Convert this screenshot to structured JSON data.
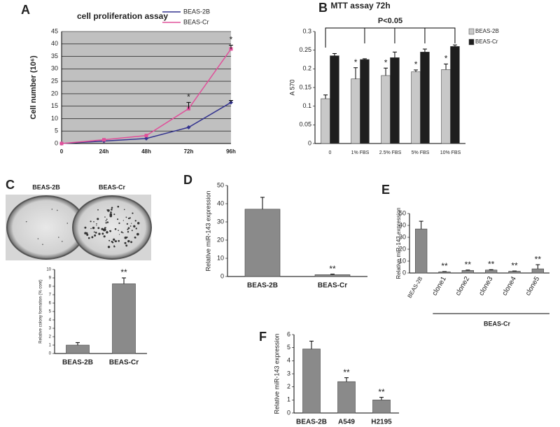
{
  "chart_data": [
    {
      "panel": "A",
      "type": "line",
      "title": "cell proliferation assay",
      "ylabel": "Cell number (10⁶)",
      "categories": [
        "0",
        "24h",
        "48h",
        "72h",
        "96h"
      ],
      "series": [
        {
          "name": "BEAS-2B",
          "color": "#33338f",
          "values": [
            0,
            1,
            2,
            6.5,
            16.5
          ],
          "errors": [
            null,
            null,
            null,
            null,
            0.8
          ],
          "significance": [
            null,
            null,
            null,
            null,
            null
          ]
        },
        {
          "name": "BEAS-Cr",
          "color": "#e0509a",
          "values": [
            0,
            1.5,
            3.2,
            14,
            38
          ],
          "errors": [
            null,
            null,
            null,
            2.5,
            1.5
          ],
          "significance": [
            null,
            null,
            null,
            "*",
            "*"
          ]
        }
      ],
      "ylim": [
        0,
        45
      ],
      "yticks": [
        0,
        5,
        10,
        15,
        20,
        25,
        30,
        35,
        40,
        45
      ],
      "grid": true,
      "background": "#c0c0c0"
    },
    {
      "panel": "B",
      "type": "bar",
      "title": "MTT assay 72h",
      "ylabel": "A 570",
      "annotation": "P<0.05",
      "categories": [
        "0",
        "1% FBS",
        "2.5% FBS",
        "5% FBS",
        "10% FBS"
      ],
      "series": [
        {
          "name": "BEAS-2B",
          "color": "#c8c8c8",
          "values": [
            0.12,
            0.173,
            0.182,
            0.192,
            0.198
          ],
          "errors": [
            0.01,
            0.03,
            0.02,
            0.005,
            0.015
          ],
          "significance": [
            null,
            "*",
            "*",
            "*",
            "*"
          ]
        },
        {
          "name": "BEAS-Cr",
          "color": "#1e1e1e",
          "values": [
            0.235,
            0.225,
            0.23,
            0.245,
            0.26
          ],
          "errors": [
            0.006,
            0.002,
            0.015,
            0.008,
            0.004
          ],
          "significance": [
            null,
            null,
            null,
            null,
            null
          ]
        }
      ],
      "ylim": [
        0,
        0.3
      ],
      "yticks": [
        0,
        0.05,
        0.1,
        0.15,
        0.2,
        0.25,
        0.3
      ]
    },
    {
      "panel": "C",
      "type": "bar",
      "image_labels": [
        "BEAS-2B",
        "BEAS-Cr"
      ],
      "ylabel": "Relative colony formation (% cont)",
      "categories": [
        "BEAS-2B",
        "BEAS-Cr"
      ],
      "values": [
        1,
        8.3
      ],
      "errors": [
        0.3,
        0.7
      ],
      "significance": [
        null,
        "**"
      ],
      "color": "#8a8a8a",
      "ylim": [
        0,
        10
      ],
      "yticks": [
        0,
        1,
        2,
        3,
        4,
        5,
        6,
        7,
        8,
        9,
        10
      ]
    },
    {
      "panel": "D",
      "type": "bar",
      "ylabel": "Relative miR-143 expression",
      "categories": [
        "BEAS-2B",
        "BEAS-Cr"
      ],
      "values": [
        37,
        1
      ],
      "errors": [
        6.5,
        0.3
      ],
      "significance": [
        null,
        "**"
      ],
      "color": "#8a8a8a",
      "ylim": [
        0,
        50
      ],
      "yticks": [
        0,
        10,
        20,
        30,
        40,
        50
      ]
    },
    {
      "panel": "E",
      "type": "bar",
      "ylabel": "Relative miR-143 expression",
      "group_label": "BEAS-Cr",
      "categories": [
        "BEAS-2B",
        "clone1",
        "clone2",
        "clone3",
        "clone4",
        "clone5"
      ],
      "values": [
        37,
        1,
        2.2,
        2.5,
        1.5,
        3.5
      ],
      "errors": [
        6.5,
        0.2,
        0.3,
        0.3,
        0.2,
        3.5
      ],
      "significance": [
        null,
        "**",
        "**",
        "**",
        "**",
        "**"
      ],
      "color": "#8a8a8a",
      "ylim": [
        0,
        50
      ],
      "yticks": [
        0,
        10,
        20,
        30,
        40,
        50
      ]
    },
    {
      "panel": "F",
      "type": "bar",
      "ylabel": "Relative miR-143 expression",
      "categories": [
        "BEAS-2B",
        "A549",
        "H2195"
      ],
      "values": [
        4.9,
        2.4,
        1.0
      ],
      "errors": [
        0.6,
        0.3,
        0.2
      ],
      "significance": [
        null,
        "**",
        "**"
      ],
      "color": "#8a8a8a",
      "ylim": [
        0,
        6
      ],
      "yticks": [
        0,
        1,
        2,
        3,
        4,
        5,
        6
      ]
    }
  ]
}
